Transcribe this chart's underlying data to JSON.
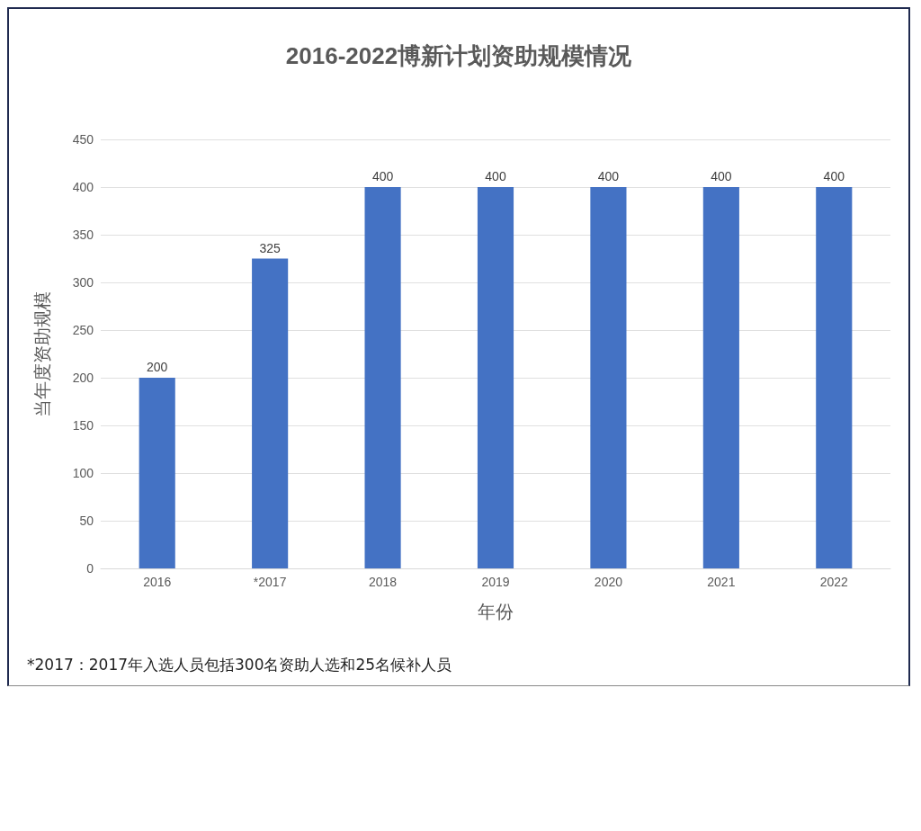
{
  "chart_data": {
    "type": "bar",
    "title": "2016-2022博新计划资助规模情况",
    "xlabel": "年份",
    "ylabel": "当年度资助规模",
    "categories": [
      "2016",
      "*2017",
      "2018",
      "2019",
      "2020",
      "2021",
      "2022"
    ],
    "values": [
      200,
      325,
      400,
      400,
      400,
      400,
      400
    ],
    "color": "#4472c4",
    "ylim": [
      0,
      450
    ],
    "yticks": [
      0,
      50,
      100,
      150,
      200,
      250,
      300,
      350,
      400,
      450
    ],
    "grid": "y",
    "data_labels": true,
    "annotations": [
      "*2017：2017年入选人员包括300名资助人选和25名候补人员"
    ]
  }
}
